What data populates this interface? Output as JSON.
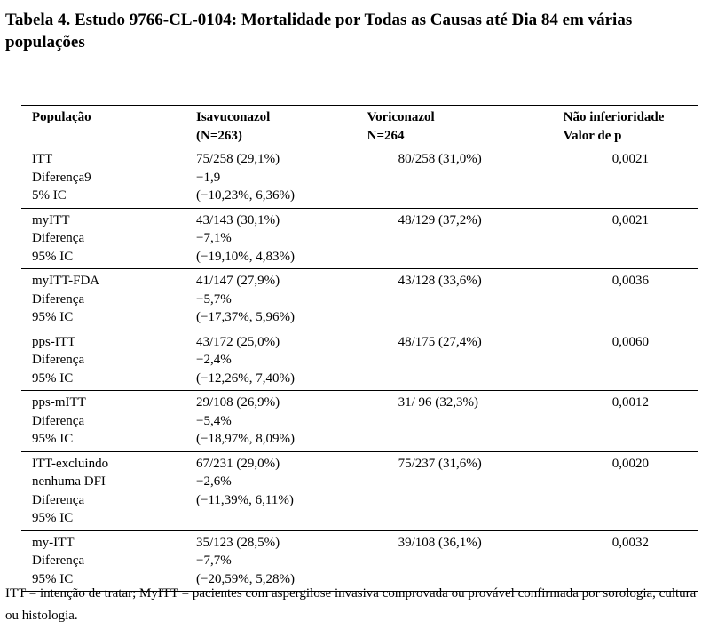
{
  "title": "Tabela 4. Estudo 9766-CL-0104: Mortalidade por Todas as Causas até Dia 84 em várias populações",
  "table": {
    "headers": {
      "population": "População",
      "isavuconazol": [
        "Isavuconazol",
        "(N=263)"
      ],
      "voriconazol": [
        "Voriconazol",
        "N=264"
      ],
      "noninferiority": [
        "Não inferioridade",
        "Valor de p"
      ]
    },
    "rows": [
      {
        "population": [
          "ITT",
          "Diferença9",
          "5% IC"
        ],
        "isavuconazol": [
          "75/258 (29,1%)",
          "−1,9",
          "(−10,23%, 6,36%)"
        ],
        "voriconazol": "80/258 (31,0%)",
        "p_value": "0,0021"
      },
      {
        "population": [
          "myITT",
          "Diferença",
          "95% IC"
        ],
        "isavuconazol": [
          "43/143 (30,1%)",
          "−7,1%",
          "(−19,10%, 4,83%)"
        ],
        "voriconazol": "48/129 (37,2%)",
        "p_value": "0,0021"
      },
      {
        "population": [
          "myITT-FDA",
          "Diferença",
          "95% IC"
        ],
        "isavuconazol": [
          "41/147 (27,9%)",
          "−5,7%",
          "(−17,37%, 5,96%)"
        ],
        "voriconazol": "43/128 (33,6%)",
        "p_value": "0,0036"
      },
      {
        "population": [
          "pps-ITT",
          "Diferença",
          "95% IC"
        ],
        "isavuconazol": [
          "43/172 (25,0%)",
          "−2,4%",
          "(−12,26%, 7,40%)"
        ],
        "voriconazol": "48/175 (27,4%)",
        "p_value": "0,0060"
      },
      {
        "population": [
          "pps-mITT",
          "Diferença",
          "95% IC"
        ],
        "isavuconazol": [
          "29/108 (26,9%)",
          "−5,4%",
          "(−18,97%, 8,09%)"
        ],
        "voriconazol": "31/ 96 (32,3%)",
        "p_value": "0,0012"
      },
      {
        "population": [
          "ITT-excluindo",
          "nenhuma DFI",
          "Diferença",
          "95% IC"
        ],
        "isavuconazol": [
          "67/231 (29,0%)",
          "−2,6%",
          "(−11,39%, 6,11%)"
        ],
        "voriconazol": "75/237 (31,6%)",
        "p_value": "0,0020"
      },
      {
        "population": [
          "my-ITT",
          "Diferença",
          "95% IC"
        ],
        "isavuconazol": [
          "35/123 (28,5%)",
          "−7,7%",
          "(−20,59%, 5,28%)"
        ],
        "voriconazol": "39/108 (36,1%)",
        "p_value": "0,0032"
      }
    ]
  },
  "footnote": "ITT = intenção de tratar; MyITT = pacientes com aspergilose invasiva comprovada ou provável confirmada por sorologia, cultura ou histologia."
}
